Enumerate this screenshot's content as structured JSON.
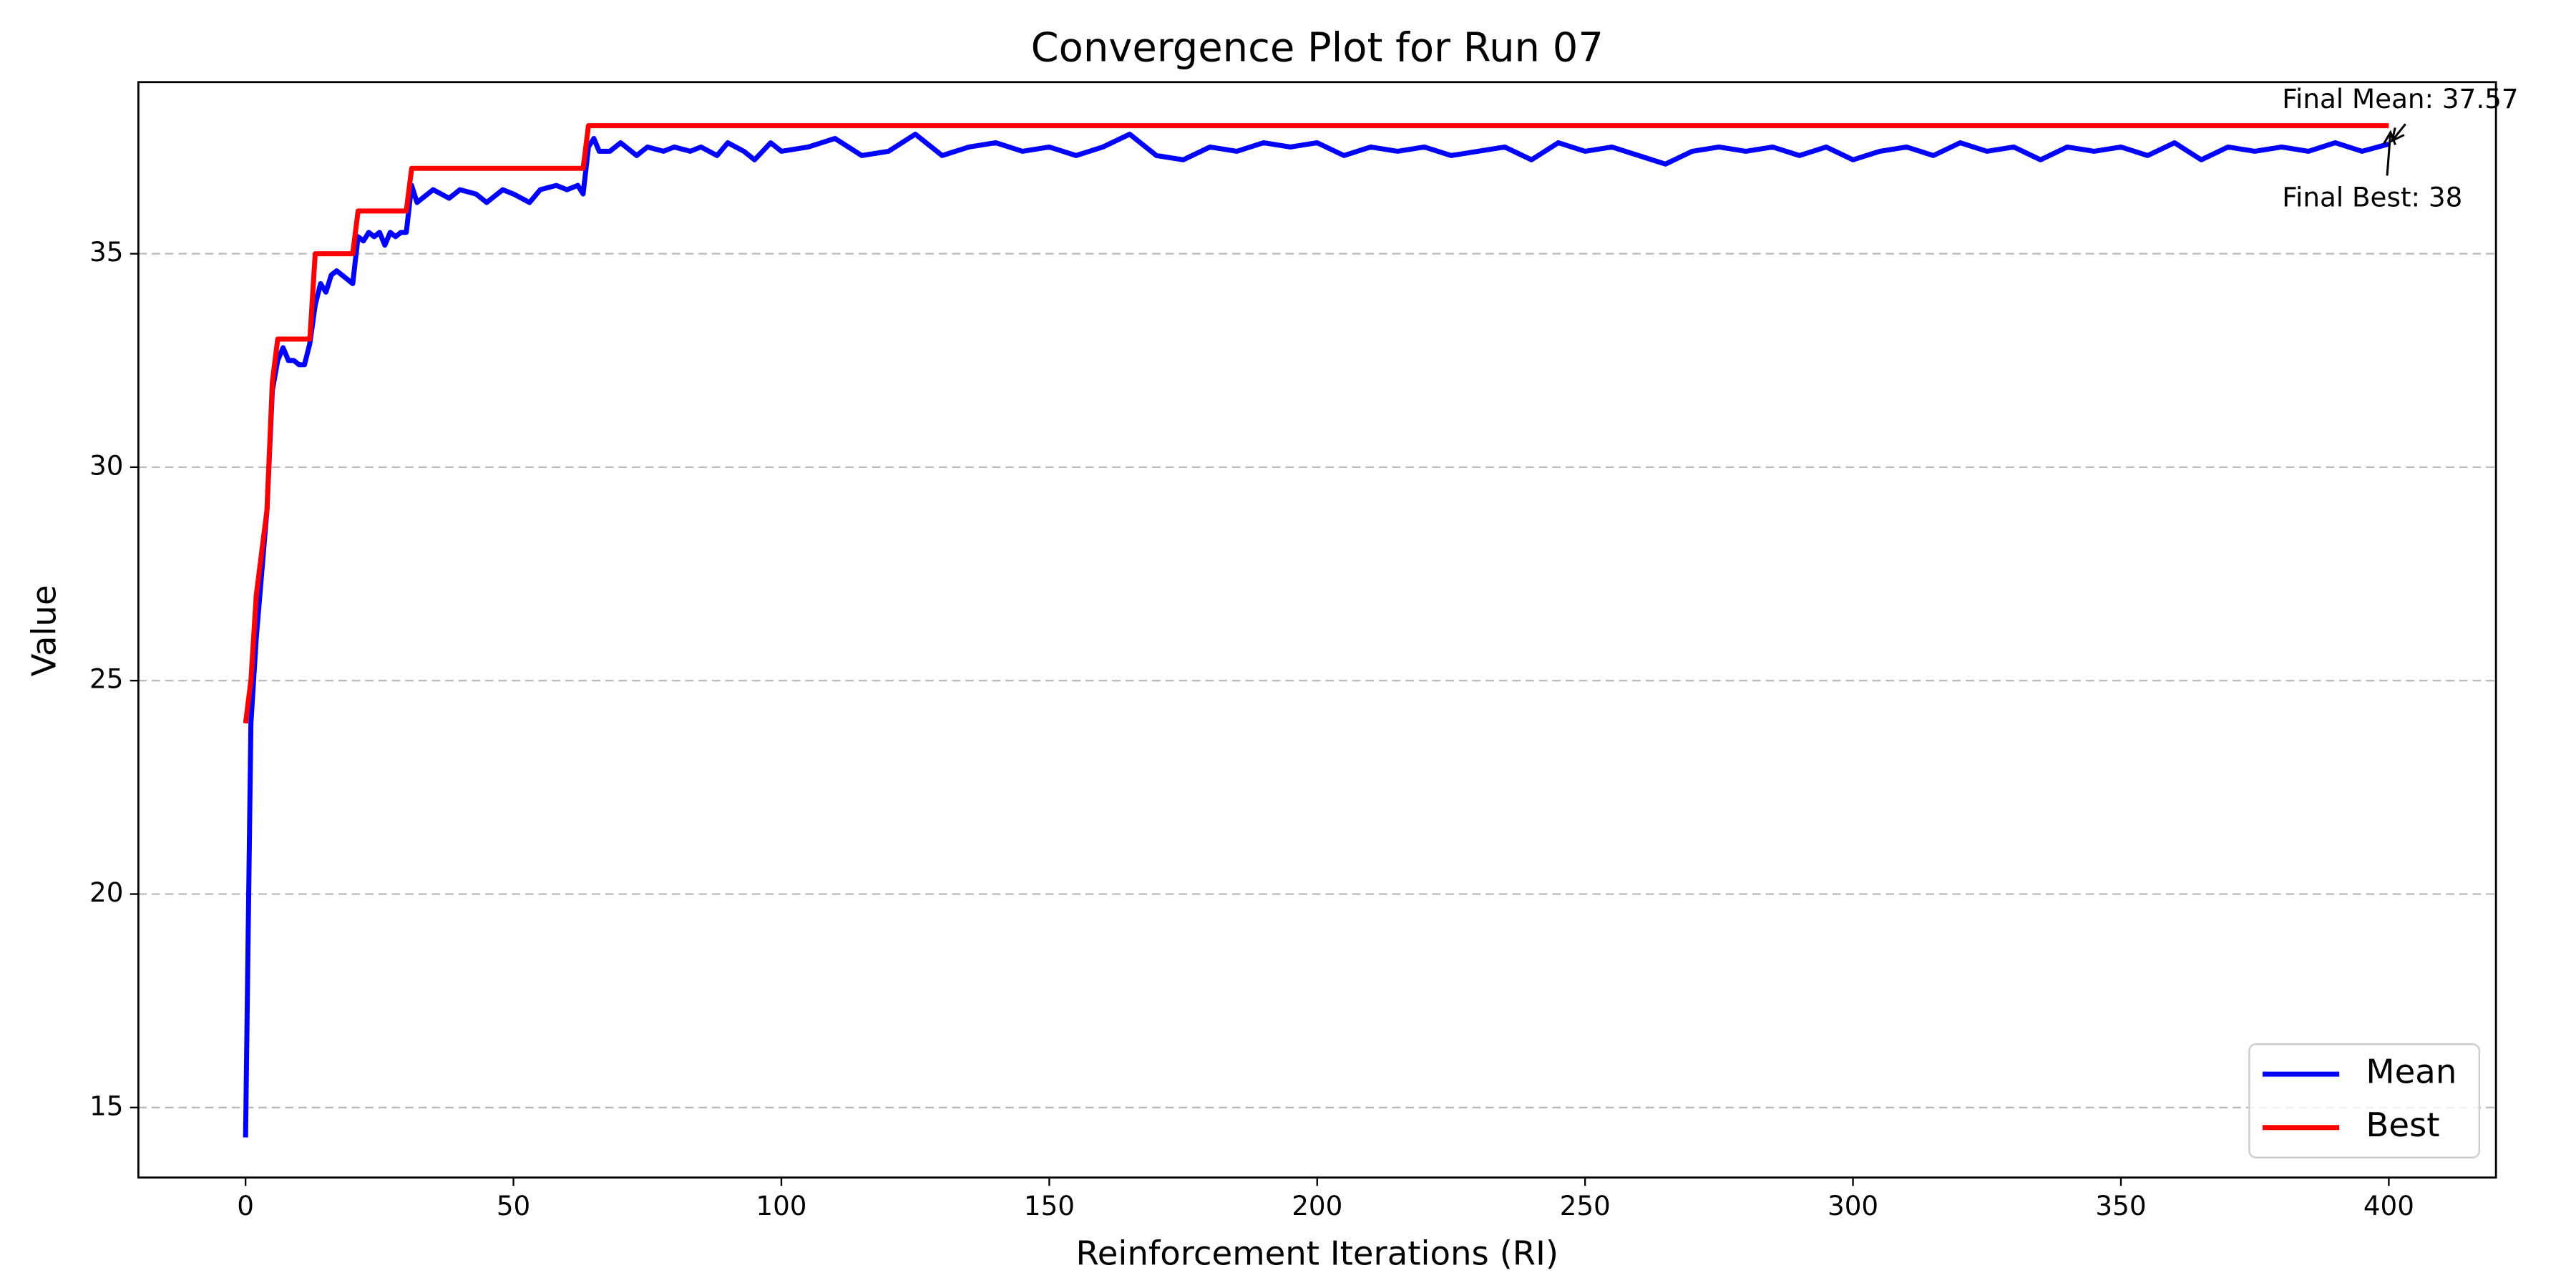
{
  "chart_data": {
    "type": "line",
    "title": "Convergence Plot for Run 07",
    "xlabel": "Reinforcement Iterations (RI)",
    "ylabel": "Value",
    "x": [
      0,
      1,
      2,
      3,
      4,
      5,
      6,
      7,
      8,
      9,
      10,
      11,
      12,
      13,
      14,
      15,
      16,
      17,
      18,
      19,
      20,
      21,
      22,
      23,
      24,
      25,
      26,
      27,
      28,
      29,
      30,
      31,
      32,
      33,
      35,
      38,
      40,
      43,
      45,
      48,
      50,
      53,
      55,
      58,
      60,
      62,
      63,
      64,
      65,
      66,
      68,
      70,
      73,
      75,
      78,
      80,
      83,
      85,
      88,
      90,
      93,
      95,
      98,
      100,
      105,
      110,
      115,
      120,
      125,
      130,
      135,
      140,
      145,
      150,
      155,
      160,
      165,
      170,
      175,
      180,
      185,
      190,
      195,
      200,
      205,
      210,
      215,
      220,
      225,
      230,
      235,
      240,
      245,
      250,
      255,
      260,
      265,
      270,
      275,
      280,
      285,
      290,
      295,
      300,
      305,
      310,
      315,
      320,
      325,
      330,
      335,
      340,
      345,
      350,
      355,
      360,
      365,
      370,
      375,
      380,
      385,
      390,
      395,
      400
    ],
    "series": [
      {
        "name": "Mean",
        "color": "#0000ff",
        "values": [
          14.3,
          24,
          26,
          27.5,
          29,
          31.8,
          32.5,
          32.8,
          32.5,
          32.5,
          32.4,
          32.4,
          32.9,
          33.8,
          34.3,
          34.1,
          34.5,
          34.6,
          34.5,
          34.4,
          34.3,
          35.4,
          35.3,
          35.5,
          35.4,
          35.5,
          35.2,
          35.5,
          35.4,
          35.5,
          35.5,
          36.6,
          36.2,
          36.3,
          36.5,
          36.3,
          36.5,
          36.4,
          36.2,
          36.5,
          36.4,
          36.2,
          36.5,
          36.6,
          36.5,
          36.6,
          36.4,
          37.5,
          37.7,
          37.4,
          37.4,
          37.6,
          37.3,
          37.5,
          37.4,
          37.5,
          37.4,
          37.5,
          37.3,
          37.6,
          37.4,
          37.2,
          37.6,
          37.4,
          37.5,
          37.7,
          37.3,
          37.4,
          37.8,
          37.3,
          37.5,
          37.6,
          37.4,
          37.5,
          37.3,
          37.5,
          37.8,
          37.3,
          37.2,
          37.5,
          37.4,
          37.6,
          37.5,
          37.6,
          37.3,
          37.5,
          37.4,
          37.5,
          37.3,
          37.4,
          37.5,
          37.2,
          37.6,
          37.4,
          37.5,
          37.3,
          37.1,
          37.4,
          37.5,
          37.4,
          37.5,
          37.3,
          37.5,
          37.2,
          37.4,
          37.5,
          37.3,
          37.6,
          37.4,
          37.5,
          37.2,
          37.5,
          37.4,
          37.5,
          37.3,
          37.6,
          37.2,
          37.5,
          37.4,
          37.5,
          37.4,
          37.6,
          37.4,
          37.57
        ]
      },
      {
        "name": "Best",
        "color": "#ff0000",
        "values": [
          24,
          25,
          27,
          28,
          29,
          32,
          33,
          33,
          33,
          33,
          33,
          33,
          33,
          35,
          35,
          35,
          35,
          35,
          35,
          35,
          35,
          36,
          36,
          36,
          36,
          36,
          36,
          36,
          36,
          36,
          36,
          37,
          37,
          37,
          37,
          37,
          37,
          37,
          37,
          37,
          37,
          37,
          37,
          37,
          37,
          37,
          37,
          38,
          38,
          38,
          38,
          38,
          38,
          38,
          38,
          38,
          38,
          38,
          38,
          38,
          38,
          38,
          38,
          38,
          38,
          38,
          38,
          38,
          38,
          38,
          38,
          38,
          38,
          38,
          38,
          38,
          38,
          38,
          38,
          38,
          38,
          38,
          38,
          38,
          38,
          38,
          38,
          38,
          38,
          38,
          38,
          38,
          38,
          38,
          38,
          38,
          38,
          38,
          38,
          38,
          38,
          38,
          38,
          38,
          38,
          38,
          38,
          38,
          38,
          38,
          38,
          38,
          38,
          38,
          38,
          38,
          38,
          38,
          38,
          38,
          38,
          38,
          38,
          38
        ]
      }
    ],
    "annotations": [
      "Final Mean: 37.57",
      "Final Best: 38"
    ],
    "xlim": [
      -20,
      420
    ],
    "xticks": [
      0,
      50,
      100,
      150,
      200,
      250,
      300,
      350,
      400
    ],
    "ylim": [
      13.36,
      39.02
    ],
    "yticks": [
      15,
      20,
      25,
      30,
      35
    ],
    "grid": true,
    "legend": "lower right"
  }
}
